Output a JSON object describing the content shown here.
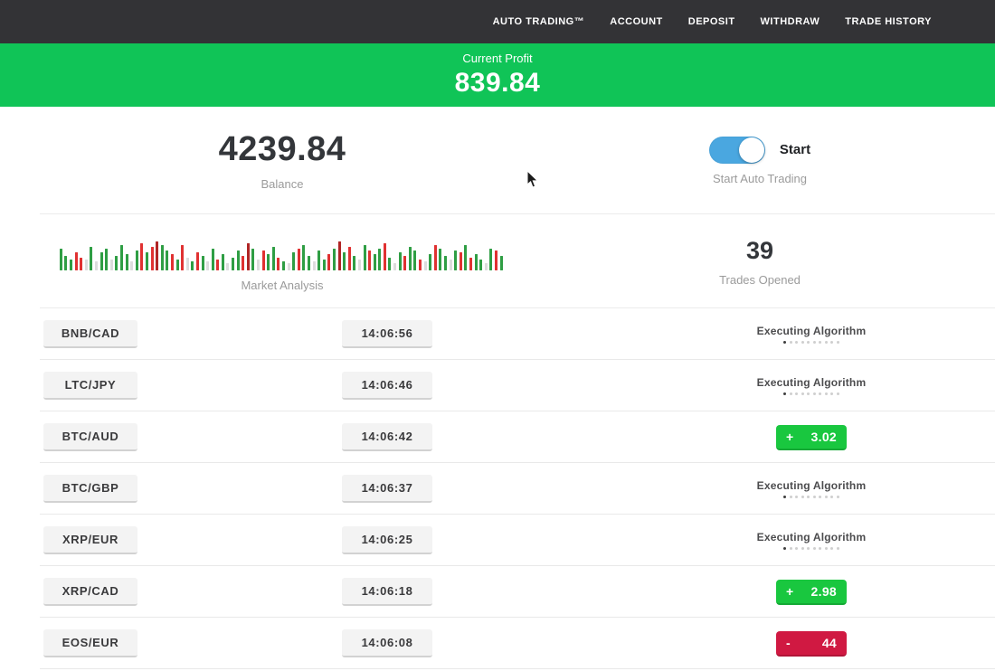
{
  "navbar": {
    "items": [
      "AUTO TRADING™",
      "ACCOUNT",
      "DEPOSIT",
      "WITHDRAW",
      "TRADE HISTORY"
    ],
    "bg_color": "#333336"
  },
  "profit_banner": {
    "label": "Current Profit",
    "value": "839.84",
    "bg_color": "#10c457"
  },
  "stats": {
    "balance": {
      "value": "4239.84",
      "label": "Balance"
    },
    "auto_trading": {
      "toggle_label": "Start",
      "label": "Start Auto Trading",
      "toggle_on": true,
      "toggle_color": "#4aa7e0"
    },
    "market_analysis": {
      "label": "Market Analysis",
      "palette": {
        "g": "#2f9e44",
        "r": "#e03131",
        "R": "#b02525",
        "l": "#dcdcdc"
      },
      "bars": [
        "g24",
        "g16",
        "g12",
        "r20",
        "r14",
        "l12",
        "g26",
        "l10",
        "g20",
        "g24",
        "l12",
        "g16",
        "g28",
        "g18",
        "l10",
        "g22",
        "r30",
        "g20",
        "r26",
        "R32",
        "g28",
        "g22",
        "r18",
        "g12",
        "r28",
        "l14",
        "g10",
        "r20",
        "g16",
        "l10",
        "g24",
        "r12",
        "g18",
        "l8",
        "g14",
        "g22",
        "r16",
        "R30",
        "g24",
        "l12",
        "r22",
        "g18",
        "g26",
        "r14",
        "g10",
        "l8",
        "g20",
        "r24",
        "g28",
        "g16",
        "l10",
        "g22",
        "g12",
        "r18",
        "g24",
        "R32",
        "g20",
        "r26",
        "g16",
        "l12",
        "g28",
        "r22",
        "g18",
        "g24",
        "r30",
        "g14",
        "l8",
        "g20",
        "r16",
        "g26",
        "g22",
        "r12",
        "l10",
        "g18",
        "r28",
        "g24",
        "g16",
        "l12",
        "g22",
        "r20",
        "g28",
        "r14",
        "g18",
        "g12",
        "l8",
        "g24",
        "r22",
        "g16"
      ]
    },
    "trades_opened": {
      "value": "39",
      "label": "Trades Opened"
    }
  },
  "trades": {
    "executing_label": "Executing Algorithm",
    "dots_count": 10,
    "colors": {
      "profit": "#19c73f",
      "loss": "#d01942"
    },
    "rows": [
      {
        "pair": "BNB/CAD",
        "time": "14:06:56",
        "status": "executing"
      },
      {
        "pair": "LTC/JPY",
        "time": "14:06:46",
        "status": "executing"
      },
      {
        "pair": "BTC/AUD",
        "time": "14:06:42",
        "status": "profit",
        "sign": "+",
        "value": "3.02"
      },
      {
        "pair": "BTC/GBP",
        "time": "14:06:37",
        "status": "executing"
      },
      {
        "pair": "XRP/EUR",
        "time": "14:06:25",
        "status": "executing"
      },
      {
        "pair": "XRP/CAD",
        "time": "14:06:18",
        "status": "profit",
        "sign": "+",
        "value": "2.98"
      },
      {
        "pair": "EOS/EUR",
        "time": "14:06:08",
        "status": "loss",
        "sign": "-",
        "value": "44"
      }
    ]
  }
}
